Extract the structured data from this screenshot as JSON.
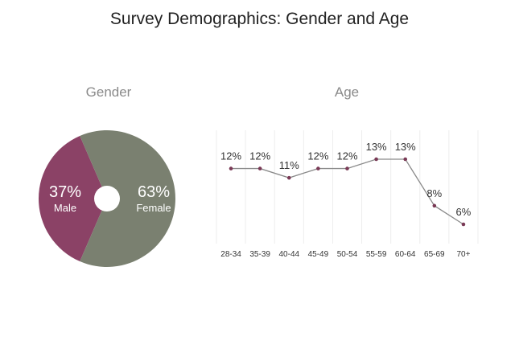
{
  "title": "Survey Demographics: Gender and Age",
  "gender_subtitle": "Gender",
  "age_subtitle": "Age",
  "colors": {
    "male": "#8b4266",
    "female": "#7a8070",
    "line": "#8a8a8a",
    "marker": "#7a3a56",
    "grid": "#eeeeee"
  },
  "chart_data": [
    {
      "type": "pie",
      "title": "Gender",
      "slices": [
        {
          "label": "Male",
          "value": 37,
          "value_label": "37%"
        },
        {
          "label": "Female",
          "value": 63,
          "value_label": "63%"
        }
      ]
    },
    {
      "type": "line",
      "title": "Age",
      "categories": [
        "28-34",
        "35-39",
        "40-44",
        "45-49",
        "50-54",
        "55-59",
        "60-64",
        "65-69",
        "70+"
      ],
      "values": [
        12,
        12,
        11,
        12,
        12,
        13,
        13,
        8,
        6
      ],
      "value_labels": [
        "12%",
        "12%",
        "11%",
        "12%",
        "12%",
        "13%",
        "13%",
        "8%",
        "6%"
      ],
      "grid": true
    }
  ]
}
